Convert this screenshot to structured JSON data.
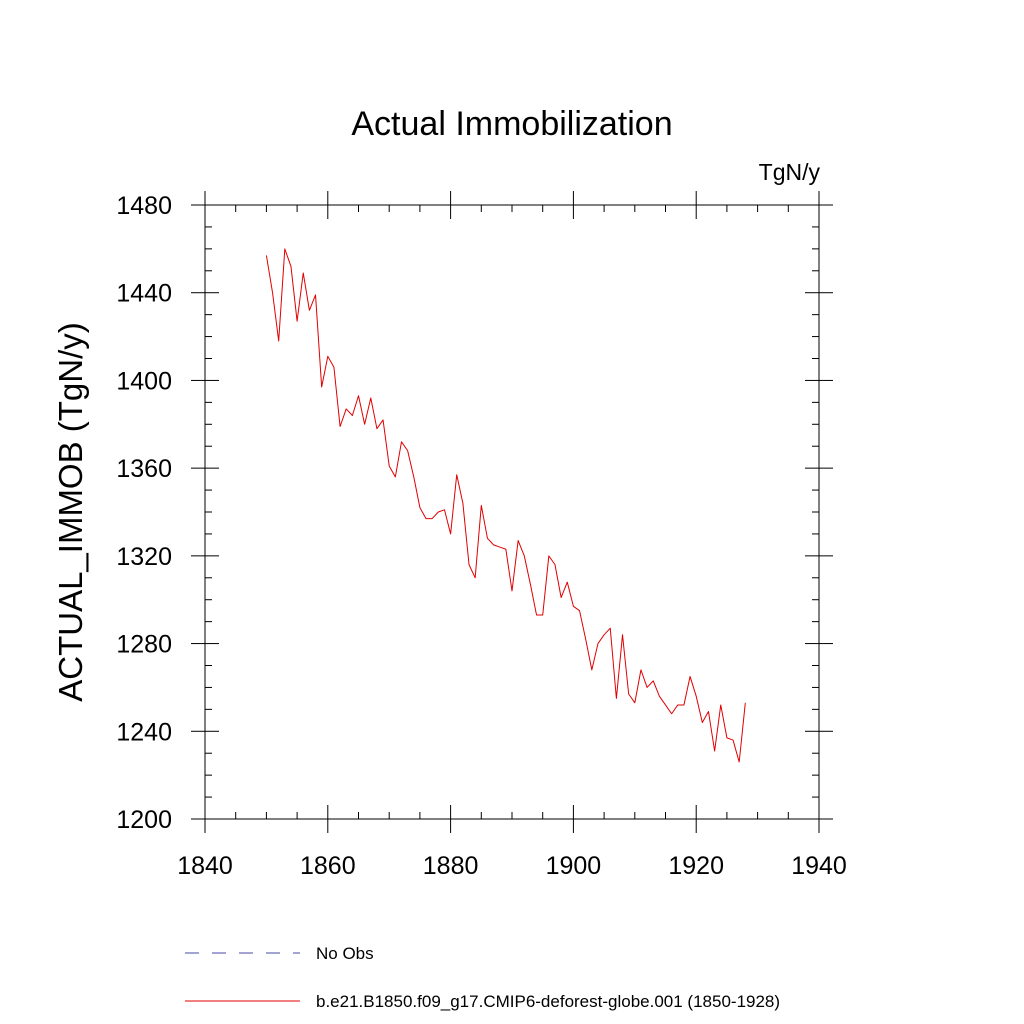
{
  "chart_data": {
    "type": "line",
    "title": "Actual Immobilization",
    "units_label": "TgN/y",
    "xlabel": "",
    "ylabel": "ACTUAL_IMMOB  (TgN/y)",
    "xlim": [
      1840,
      1940
    ],
    "ylim": [
      1200,
      1480
    ],
    "x_ticks": [
      1840,
      1860,
      1880,
      1900,
      1920,
      1940
    ],
    "y_ticks": [
      1200,
      1240,
      1280,
      1320,
      1360,
      1400,
      1440,
      1480
    ],
    "x_tick_labels": [
      "1840",
      "1860",
      "1880",
      "1900",
      "1920",
      "1940"
    ],
    "y_tick_labels": [
      "1200",
      "1240",
      "1280",
      "1320",
      "1360",
      "1400",
      "1440",
      "1480"
    ],
    "legend_position": "bottom",
    "legend": [
      {
        "label": "No Obs",
        "color": "#4a4aa8",
        "style": "dashed"
      },
      {
        "label": "b.e21.B1850.f09_g17.CMIP6-deforest-globe.001 (1850-1928)",
        "color": "#e00000",
        "style": "solid"
      }
    ],
    "series": [
      {
        "name": "b.e21.B1850.f09_g17.CMIP6-deforest-globe.001 (1850-1928)",
        "color": "#e00000",
        "x": [
          1850,
          1851,
          1852,
          1853,
          1854,
          1855,
          1856,
          1857,
          1858,
          1859,
          1860,
          1861,
          1862,
          1863,
          1864,
          1865,
          1866,
          1867,
          1868,
          1869,
          1870,
          1871,
          1872,
          1873,
          1874,
          1875,
          1876,
          1877,
          1878,
          1879,
          1880,
          1881,
          1882,
          1883,
          1884,
          1885,
          1886,
          1887,
          1888,
          1889,
          1890,
          1891,
          1892,
          1893,
          1894,
          1895,
          1896,
          1897,
          1898,
          1899,
          1900,
          1901,
          1902,
          1903,
          1904,
          1905,
          1906,
          1907,
          1908,
          1909,
          1910,
          1911,
          1912,
          1913,
          1914,
          1915,
          1916,
          1917,
          1918,
          1919,
          1920,
          1921,
          1922,
          1923,
          1924,
          1925,
          1926,
          1927,
          1928
        ],
        "values": [
          1457,
          1440,
          1418,
          1460,
          1452,
          1427,
          1449,
          1432,
          1439,
          1397,
          1411,
          1406,
          1379,
          1387,
          1384,
          1393,
          1380,
          1392,
          1378,
          1382,
          1361,
          1356,
          1372,
          1368,
          1356,
          1342,
          1337,
          1337,
          1340,
          1341,
          1330,
          1357,
          1344,
          1316,
          1310,
          1343,
          1328,
          1325,
          1324,
          1323,
          1304,
          1327,
          1320,
          1307,
          1293,
          1293,
          1320,
          1316,
          1301,
          1308,
          1297,
          1295,
          1282,
          1268,
          1280,
          1284,
          1287,
          1255,
          1284,
          1257,
          1253,
          1268,
          1260,
          1263,
          1256,
          1252,
          1248,
          1252,
          1252,
          1265,
          1256,
          1244,
          1249,
          1231,
          1252,
          1237,
          1236,
          1226,
          1253
        ]
      }
    ]
  }
}
